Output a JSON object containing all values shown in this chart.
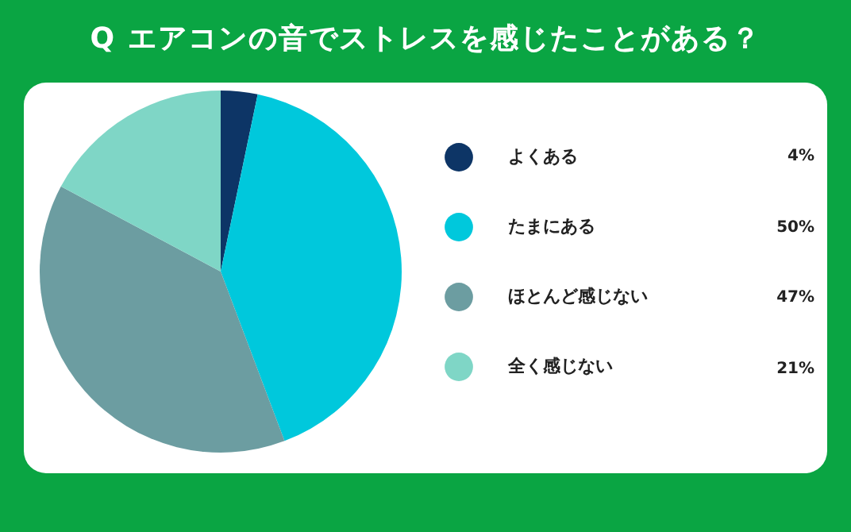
{
  "chart_data": {
    "type": "pie",
    "title": "Q エアコンの音でストレスを感じたことがある？",
    "categories": [
      "よくある",
      "たまにある",
      "ほとんど感じない",
      "全く感じない"
    ],
    "values": [
      4,
      50,
      47,
      21
    ],
    "colors": [
      "#0d3566",
      "#00c8dc",
      "#6c9da1",
      "#7fd6c6"
    ],
    "value_labels": [
      "4%",
      "50%",
      "47%",
      "21%"
    ],
    "legend": "right"
  }
}
